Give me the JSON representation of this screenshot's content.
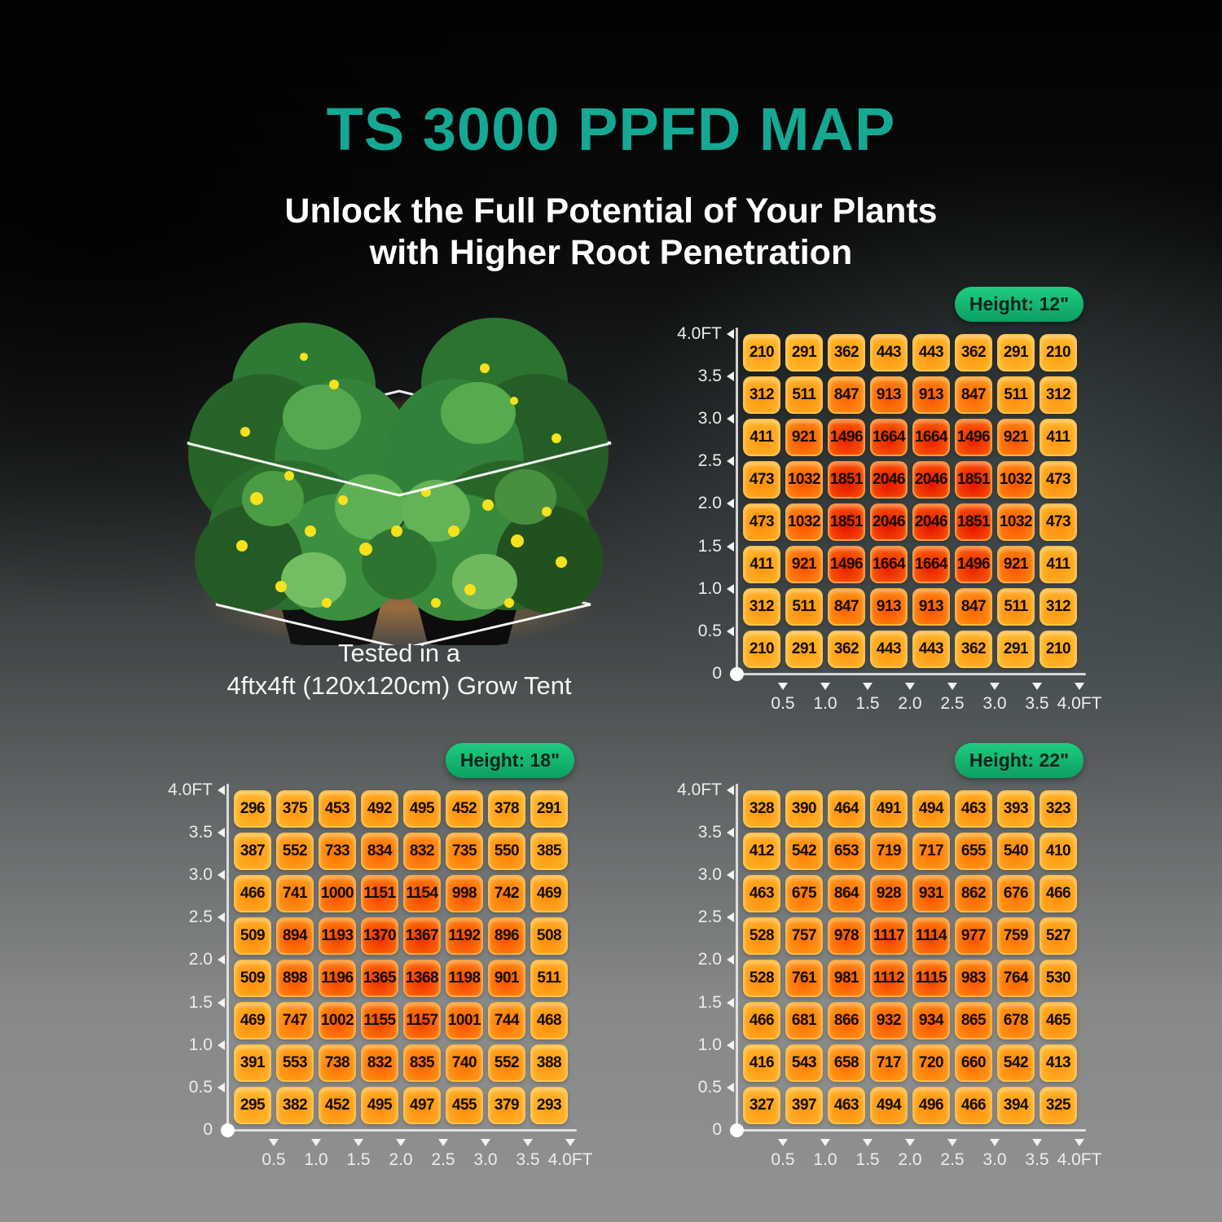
{
  "title": "TS 3000 PPFD MAP",
  "subtitle_line1": "Unlock the Full Potential of Your Plants",
  "subtitle_line2": "with Higher Root Penetration",
  "caption_line1": "Tested in a",
  "caption_line2": "4ftx4ft (120x120cm) Grow Tent",
  "colors": {
    "accent_teal": "#15a893",
    "badge_green_top": "#1fcd81",
    "badge_green_bottom": "#0c9f61",
    "cell_low": "#ffc138",
    "cell_high": "#e31200"
  },
  "chart_data": [
    {
      "type": "heatmap",
      "title": "Height: 12\"",
      "x_labels": [
        "0.5",
        "1.0",
        "1.5",
        "2.0",
        "2.5",
        "3.0",
        "3.5",
        "4.0FT"
      ],
      "y_labels": [
        "4.0FT",
        "3.5",
        "3.0",
        "2.5",
        "2.0",
        "1.5",
        "1.0",
        "0.5",
        "0"
      ],
      "values": [
        [
          210,
          291,
          362,
          443,
          443,
          362,
          291,
          210
        ],
        [
          312,
          511,
          847,
          913,
          913,
          847,
          511,
          312
        ],
        [
          411,
          921,
          1496,
          1664,
          1664,
          1496,
          921,
          411
        ],
        [
          473,
          1032,
          1851,
          2046,
          2046,
          1851,
          1032,
          473
        ],
        [
          473,
          1032,
          1851,
          2046,
          2046,
          1851,
          1032,
          473
        ],
        [
          411,
          921,
          1496,
          1664,
          1664,
          1496,
          921,
          411
        ],
        [
          312,
          511,
          847,
          913,
          913,
          847,
          511,
          312
        ],
        [
          210,
          291,
          362,
          443,
          443,
          362,
          291,
          210
        ]
      ]
    },
    {
      "type": "heatmap",
      "title": "Height: 18\"",
      "x_labels": [
        "0.5",
        "1.0",
        "1.5",
        "2.0",
        "2.5",
        "3.0",
        "3.5",
        "4.0FT"
      ],
      "y_labels": [
        "4.0FT",
        "3.5",
        "3.0",
        "2.5",
        "2.0",
        "1.5",
        "1.0",
        "0.5",
        "0"
      ],
      "values": [
        [
          296,
          375,
          453,
          492,
          495,
          452,
          378,
          291
        ],
        [
          387,
          552,
          733,
          834,
          832,
          735,
          550,
          385
        ],
        [
          466,
          741,
          1000,
          1151,
          1154,
          998,
          742,
          469
        ],
        [
          509,
          894,
          1193,
          1370,
          1367,
          1192,
          896,
          508
        ],
        [
          509,
          898,
          1196,
          1365,
          1368,
          1198,
          901,
          511
        ],
        [
          469,
          747,
          1002,
          1155,
          1157,
          1001,
          744,
          468
        ],
        [
          391,
          553,
          738,
          832,
          835,
          740,
          552,
          388
        ],
        [
          295,
          382,
          452,
          495,
          497,
          455,
          379,
          293
        ]
      ]
    },
    {
      "type": "heatmap",
      "title": "Height: 22\"",
      "x_labels": [
        "0.5",
        "1.0",
        "1.5",
        "2.0",
        "2.5",
        "3.0",
        "3.5",
        "4.0FT"
      ],
      "y_labels": [
        "4.0FT",
        "3.5",
        "3.0",
        "2.5",
        "2.0",
        "1.5",
        "1.0",
        "0.5",
        "0"
      ],
      "values": [
        [
          328,
          390,
          464,
          491,
          494,
          463,
          393,
          323
        ],
        [
          412,
          542,
          653,
          719,
          717,
          655,
          540,
          410
        ],
        [
          463,
          675,
          864,
          928,
          931,
          862,
          676,
          466
        ],
        [
          528,
          757,
          978,
          1117,
          1114,
          977,
          759,
          527
        ],
        [
          528,
          761,
          981,
          1112,
          1115,
          983,
          764,
          530
        ],
        [
          466,
          681,
          866,
          932,
          934,
          865,
          678,
          465
        ],
        [
          416,
          543,
          658,
          717,
          720,
          660,
          542,
          413
        ],
        [
          327,
          397,
          463,
          494,
          496,
          466,
          394,
          325
        ]
      ]
    }
  ]
}
